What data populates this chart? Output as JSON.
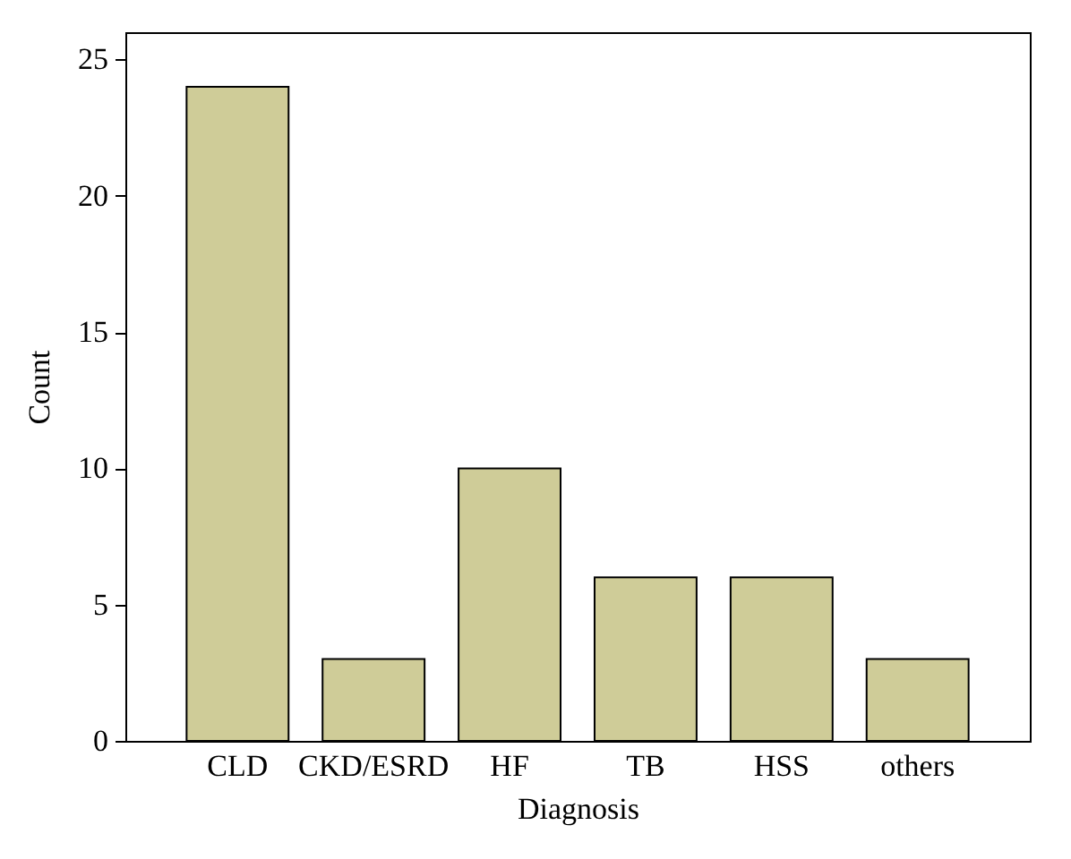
{
  "chart_data": {
    "type": "bar",
    "xlabel": "Diagnosis",
    "ylabel": "Count",
    "categories": [
      "CLD",
      "CKD/ESRD",
      "HF",
      "TB",
      "HSS",
      "others"
    ],
    "values": [
      24,
      3,
      10,
      6,
      6,
      3
    ],
    "color": "#cfcc98",
    "ylim": [
      0,
      26
    ],
    "yticks": [
      0,
      5,
      10,
      15,
      20,
      25
    ],
    "grid": false
  }
}
